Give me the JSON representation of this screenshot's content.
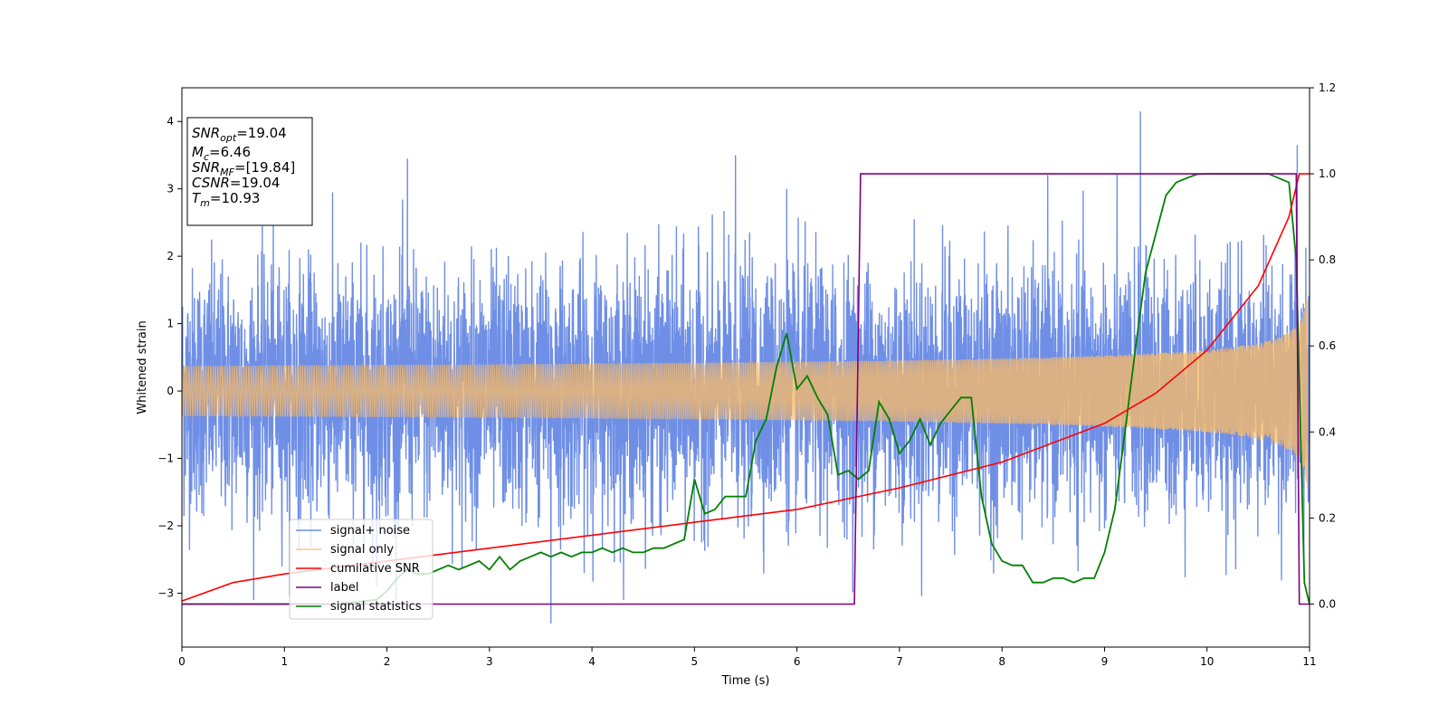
{
  "chart_data": {
    "type": "line",
    "xlabel": "Time (s)",
    "ylabel": "Whitened strain",
    "xlim": [
      0,
      11
    ],
    "ylim": [
      -3.8,
      4.5
    ],
    "y2lim": [
      -0.1,
      1.2
    ],
    "xticks": [
      "0",
      "1",
      "2",
      "3",
      "4",
      "5",
      "6",
      "7",
      "8",
      "9",
      "10",
      "11"
    ],
    "yticks": [
      "−3",
      "−2",
      "−1",
      "0",
      "1",
      "2",
      "3",
      "4"
    ],
    "y2ticks": [
      "0.0",
      "0.2",
      "0.4",
      "0.6",
      "0.8",
      "1.0",
      "1.2"
    ],
    "grid": false,
    "legend_position": "lower-left",
    "colors": {
      "signal_noise": "#6f8fe6",
      "signal_only": "#f5b96b",
      "cumulative_snr": "#ff0000",
      "label": "#800080",
      "signal_statistics": "#008000"
    },
    "series": [
      {
        "name": "signal+ noise",
        "axis": "left",
        "note_shape": "noise band",
        "typical_amplitude": 1.3,
        "max_peak": 4.15
      },
      {
        "name": "signal only",
        "axis": "left",
        "amplitude_start": 0.08,
        "amplitude_end": 1.5
      },
      {
        "name": "cumilative SNR",
        "axis": "right",
        "x": [
          0,
          0.5,
          1,
          2,
          3,
          4,
          5,
          6,
          7,
          8,
          9,
          9.5,
          10,
          10.5,
          10.8,
          10.9,
          11
        ],
        "y": [
          0.007,
          0.05,
          0.07,
          0.1,
          0.13,
          0.16,
          0.19,
          0.22,
          0.27,
          0.33,
          0.42,
          0.49,
          0.59,
          0.74,
          0.9,
          1.0,
          1.0
        ]
      },
      {
        "name": "label",
        "axis": "right",
        "x": [
          0,
          6.56,
          6.62,
          10.87,
          10.9,
          11
        ],
        "y": [
          0,
          0,
          1,
          1,
          0,
          0
        ]
      },
      {
        "name": "signal statistics",
        "axis": "right",
        "x": [
          0,
          1,
          1.5,
          1.9,
          2.0,
          2.1,
          2.2,
          2.3,
          2.4,
          2.5,
          2.6,
          2.7,
          2.8,
          2.9,
          3.0,
          3.1,
          3.2,
          3.3,
          3.4,
          3.5,
          3.6,
          3.7,
          3.8,
          3.9,
          4.0,
          4.1,
          4.2,
          4.3,
          4.4,
          4.5,
          4.6,
          4.7,
          4.8,
          4.9,
          5.0,
          5.1,
          5.2,
          5.3,
          5.4,
          5.5,
          5.6,
          5.7,
          5.8,
          5.9,
          6.0,
          6.1,
          6.2,
          6.3,
          6.4,
          6.5,
          6.6,
          6.7,
          6.8,
          6.9,
          7.0,
          7.1,
          7.2,
          7.3,
          7.4,
          7.5,
          7.6,
          7.7,
          7.8,
          7.9,
          8.0,
          8.1,
          8.2,
          8.3,
          8.4,
          8.5,
          8.6,
          8.7,
          8.8,
          8.9,
          9.0,
          9.1,
          9.2,
          9.3,
          9.4,
          9.5,
          9.6,
          9.7,
          9.8,
          9.9,
          10.0,
          10.3,
          10.6,
          10.8,
          10.87,
          10.95,
          11.0
        ],
        "y": [
          0,
          0,
          0.0,
          0.01,
          0.03,
          0.06,
          0.08,
          0.07,
          0.07,
          0.08,
          0.09,
          0.08,
          0.09,
          0.1,
          0.08,
          0.11,
          0.08,
          0.1,
          0.11,
          0.12,
          0.11,
          0.12,
          0.11,
          0.12,
          0.12,
          0.13,
          0.12,
          0.13,
          0.12,
          0.12,
          0.13,
          0.13,
          0.14,
          0.15,
          0.29,
          0.21,
          0.22,
          0.25,
          0.25,
          0.25,
          0.38,
          0.43,
          0.55,
          0.63,
          0.5,
          0.53,
          0.48,
          0.44,
          0.3,
          0.31,
          0.29,
          0.31,
          0.47,
          0.43,
          0.35,
          0.38,
          0.43,
          0.37,
          0.42,
          0.45,
          0.48,
          0.48,
          0.25,
          0.14,
          0.1,
          0.09,
          0.09,
          0.05,
          0.05,
          0.06,
          0.06,
          0.05,
          0.06,
          0.06,
          0.12,
          0.22,
          0.4,
          0.59,
          0.77,
          0.86,
          0.95,
          0.98,
          0.99,
          0.999,
          1.0,
          1.0,
          1.0,
          0.98,
          0.8,
          0.05,
          0.0
        ]
      }
    ],
    "annotation": {
      "lines": [
        {
          "base": "SNR",
          "sub": "opt",
          "value": "=19.04"
        },
        {
          "base": "M",
          "sub": "c",
          "value": "=6.46"
        },
        {
          "base": "SNR",
          "sub": "MF",
          "value": "=[19.84]"
        },
        {
          "base": "CSNR",
          "sub": "",
          "value": "=19.04"
        },
        {
          "base": "T",
          "sub": "m",
          "value": "=10.93"
        }
      ]
    }
  }
}
